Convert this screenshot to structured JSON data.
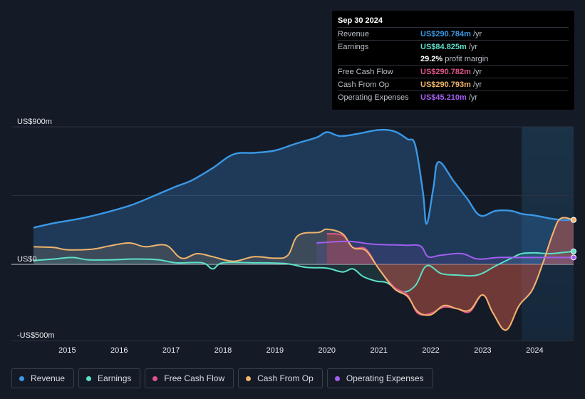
{
  "tooltip": {
    "date": "Sep 30 2024",
    "rows": [
      {
        "label": "Revenue",
        "value": "US$290.784m",
        "unit": "/yr",
        "color": "#3a98e6"
      },
      {
        "label": "Earnings",
        "value": "US$84.825m",
        "unit": "/yr",
        "color": "#5ce0c8"
      },
      {
        "label": "",
        "value": "29.2%",
        "unit": "profit margin",
        "color": "#ffffff"
      },
      {
        "label": "Free Cash Flow",
        "value": "US$290.782m",
        "unit": "/yr",
        "color": "#e0558a"
      },
      {
        "label": "Cash From Op",
        "value": "US$290.793m",
        "unit": "/yr",
        "color": "#f0b46c"
      },
      {
        "label": "Operating Expenses",
        "value": "US$45.210m",
        "unit": "/yr",
        "color": "#a35ef0"
      }
    ]
  },
  "legend": [
    {
      "label": "Revenue",
      "color": "#3a98e6"
    },
    {
      "label": "Earnings",
      "color": "#5ce0c8"
    },
    {
      "label": "Free Cash Flow",
      "color": "#e0558a"
    },
    {
      "label": "Cash From Op",
      "color": "#f0b46c"
    },
    {
      "label": "Operating Expenses",
      "color": "#a35ef0"
    }
  ],
  "chart_data": {
    "type": "area",
    "y_tick_labels": [
      "US$900m",
      "US$0",
      "-US$500m"
    ],
    "ylim": [
      -500,
      900
    ],
    "xlim": [
      2014.35,
      2024.75
    ],
    "x_tick_labels": [
      "2015",
      "2016",
      "2017",
      "2018",
      "2019",
      "2020",
      "2021",
      "2022",
      "2023",
      "2024"
    ],
    "x_ticks": [
      2015,
      2016,
      2017,
      2018,
      2019,
      2020,
      2021,
      2022,
      2023,
      2024
    ],
    "highlight_range": [
      2023.75,
      2024.75
    ],
    "series": [
      {
        "name": "Revenue",
        "color": "#3a98e6",
        "points": [
          [
            2014.35,
            240
          ],
          [
            2014.75,
            270
          ],
          [
            2015.25,
            300
          ],
          [
            2015.75,
            340
          ],
          [
            2016.25,
            390
          ],
          [
            2016.75,
            460
          ],
          [
            2017.1,
            510
          ],
          [
            2017.4,
            550
          ],
          [
            2017.8,
            630
          ],
          [
            2018.2,
            720
          ],
          [
            2018.6,
            730
          ],
          [
            2019.0,
            745
          ],
          [
            2019.4,
            790
          ],
          [
            2019.8,
            830
          ],
          [
            2020.0,
            865
          ],
          [
            2020.25,
            840
          ],
          [
            2020.6,
            855
          ],
          [
            2021.0,
            880
          ],
          [
            2021.3,
            870
          ],
          [
            2021.55,
            820
          ],
          [
            2021.7,
            780
          ],
          [
            2021.85,
            470
          ],
          [
            2021.92,
            265
          ],
          [
            2022.05,
            500
          ],
          [
            2022.15,
            670
          ],
          [
            2022.45,
            540
          ],
          [
            2022.7,
            430
          ],
          [
            2022.95,
            320
          ],
          [
            2023.25,
            350
          ],
          [
            2023.55,
            350
          ],
          [
            2023.75,
            330
          ],
          [
            2024.0,
            320
          ],
          [
            2024.3,
            300
          ],
          [
            2024.55,
            290
          ],
          [
            2024.75,
            291
          ]
        ]
      },
      {
        "name": "Earnings",
        "color": "#5ce0c8",
        "points": [
          [
            2014.35,
            25
          ],
          [
            2014.75,
            35
          ],
          [
            2015.1,
            45
          ],
          [
            2015.4,
            30
          ],
          [
            2015.9,
            30
          ],
          [
            2016.3,
            35
          ],
          [
            2016.75,
            30
          ],
          [
            2017.1,
            10
          ],
          [
            2017.6,
            10
          ],
          [
            2017.8,
            -30
          ],
          [
            2018.0,
            10
          ],
          [
            2018.6,
            10
          ],
          [
            2019.2,
            5
          ],
          [
            2019.6,
            -20
          ],
          [
            2020.0,
            -25
          ],
          [
            2020.3,
            -50
          ],
          [
            2020.5,
            -30
          ],
          [
            2020.7,
            -80
          ],
          [
            2020.95,
            -110
          ],
          [
            2021.15,
            -120
          ],
          [
            2021.45,
            -180
          ],
          [
            2021.7,
            -140
          ],
          [
            2021.92,
            -10
          ],
          [
            2022.2,
            -60
          ],
          [
            2022.5,
            -70
          ],
          [
            2022.9,
            -70
          ],
          [
            2023.25,
            -10
          ],
          [
            2023.55,
            40
          ],
          [
            2023.75,
            70
          ],
          [
            2024.0,
            75
          ],
          [
            2024.3,
            70
          ],
          [
            2024.55,
            78
          ],
          [
            2024.75,
            85
          ]
        ]
      },
      {
        "name": "Free Cash Flow",
        "color": "#e0558a",
        "points": [
          [
            2020.0,
            200
          ],
          [
            2020.3,
            190
          ],
          [
            2020.5,
            110
          ],
          [
            2020.75,
            100
          ],
          [
            2021.0,
            -30
          ],
          [
            2021.3,
            -150
          ],
          [
            2021.55,
            -200
          ],
          [
            2021.75,
            -320
          ],
          [
            2022.0,
            -320
          ],
          [
            2022.25,
            -280
          ],
          [
            2022.5,
            -290
          ],
          [
            2022.75,
            -310
          ],
          [
            2023.0,
            -200
          ],
          [
            2023.2,
            -320
          ],
          [
            2023.45,
            -430
          ],
          [
            2023.7,
            -270
          ],
          [
            2023.95,
            -170
          ],
          [
            2024.15,
            0
          ],
          [
            2024.35,
            200
          ],
          [
            2024.5,
            300
          ],
          [
            2024.75,
            290
          ]
        ]
      },
      {
        "name": "Cash From Op",
        "color": "#f0b46c",
        "points": [
          [
            2014.35,
            115
          ],
          [
            2014.75,
            110
          ],
          [
            2015.0,
            95
          ],
          [
            2015.5,
            100
          ],
          [
            2015.8,
            120
          ],
          [
            2016.2,
            140
          ],
          [
            2016.5,
            115
          ],
          [
            2016.9,
            125
          ],
          [
            2017.2,
            40
          ],
          [
            2017.5,
            70
          ],
          [
            2017.8,
            50
          ],
          [
            2018.2,
            20
          ],
          [
            2018.6,
            50
          ],
          [
            2019.0,
            40
          ],
          [
            2019.25,
            60
          ],
          [
            2019.45,
            190
          ],
          [
            2019.85,
            210
          ],
          [
            2020.0,
            230
          ],
          [
            2020.3,
            200
          ],
          [
            2020.5,
            110
          ],
          [
            2020.75,
            90
          ],
          [
            2021.0,
            -30
          ],
          [
            2021.3,
            -160
          ],
          [
            2021.55,
            -210
          ],
          [
            2021.75,
            -310
          ],
          [
            2022.0,
            -330
          ],
          [
            2022.25,
            -270
          ],
          [
            2022.5,
            -290
          ],
          [
            2022.75,
            -300
          ],
          [
            2023.0,
            -200
          ],
          [
            2023.2,
            -320
          ],
          [
            2023.45,
            -430
          ],
          [
            2023.7,
            -270
          ],
          [
            2023.95,
            -170
          ],
          [
            2024.15,
            0
          ],
          [
            2024.35,
            200
          ],
          [
            2024.5,
            300
          ],
          [
            2024.75,
            291
          ]
        ]
      },
      {
        "name": "Operating Expenses",
        "color": "#a35ef0",
        "points": [
          [
            2019.8,
            140
          ],
          [
            2020.4,
            150
          ],
          [
            2020.8,
            135
          ],
          [
            2021.0,
            130
          ],
          [
            2021.5,
            125
          ],
          [
            2021.8,
            120
          ],
          [
            2021.95,
            50
          ],
          [
            2022.2,
            60
          ],
          [
            2022.6,
            70
          ],
          [
            2022.9,
            35
          ],
          [
            2023.3,
            45
          ],
          [
            2023.7,
            45
          ],
          [
            2024.2,
            45
          ],
          [
            2024.75,
            45
          ]
        ]
      }
    ]
  }
}
